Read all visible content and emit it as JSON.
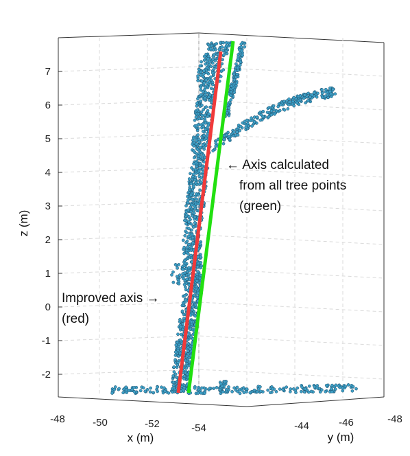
{
  "chart_data": {
    "type": "scatter",
    "projection": "3d",
    "grid": true,
    "xlabel": "x (m)",
    "ylabel": "y (m)",
    "zlabel": "z (m)",
    "z_ticks": [
      "-2",
      "-1",
      "0",
      "1",
      "2",
      "3",
      "4",
      "5",
      "6",
      "7"
    ],
    "z_range": [
      -2.6,
      7.9
    ],
    "x_ticks": [
      "-48",
      "-50",
      "-52",
      "-54"
    ],
    "y_ticks": [
      "-44",
      "-46",
      "-48"
    ],
    "point_color": "#3d9fc6",
    "point_edge_color": "#1b4a66",
    "green_color": "#22e010",
    "red_color": "#f03a3a",
    "axes": [
      {
        "name": "green",
        "z": [
          -2.6,
          7.8
        ],
        "screen_note": "axis from all tree points"
      },
      {
        "name": "red",
        "z": [
          -2.6,
          7.6
        ],
        "screen_note": "improved axis"
      }
    ],
    "annotations": [
      {
        "id": "green",
        "lines": [
          "← Axis calculated",
          "from all tree points",
          "(green)"
        ]
      },
      {
        "id": "red",
        "lines": [
          "Improved axis →",
          "(red)"
        ]
      }
    ]
  }
}
